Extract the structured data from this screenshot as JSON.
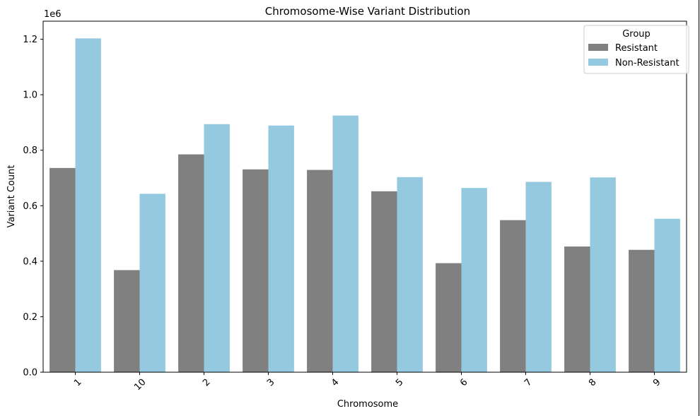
{
  "chart_data": {
    "type": "bar",
    "title": "Chromosome-Wise Variant Distribution",
    "xlabel": "Chromosome",
    "ylabel": "Variant Count",
    "offset_text": "1e6",
    "categories": [
      "1",
      "10",
      "2",
      "3",
      "4",
      "5",
      "6",
      "7",
      "8",
      "9"
    ],
    "series": [
      {
        "name": "Resistant",
        "color": "#808080",
        "values": [
          736000,
          368000,
          785000,
          731000,
          729000,
          652000,
          393000,
          548000,
          453000,
          441000
        ]
      },
      {
        "name": "Non-Resistant",
        "color": "#95c9df",
        "values": [
          1203000,
          643000,
          894000,
          889000,
          925000,
          703000,
          664000,
          686000,
          702000,
          553000
        ]
      }
    ],
    "ylim": [
      0,
      1265000
    ],
    "yticks": [
      0,
      200000,
      400000,
      600000,
      800000,
      1000000,
      1200000
    ],
    "ytick_labels": [
      "0.0",
      "0.2",
      "0.4",
      "0.6",
      "0.8",
      "1.0",
      "1.2"
    ],
    "legend": {
      "title": "Group",
      "position": "top-right"
    },
    "grid": false
  }
}
